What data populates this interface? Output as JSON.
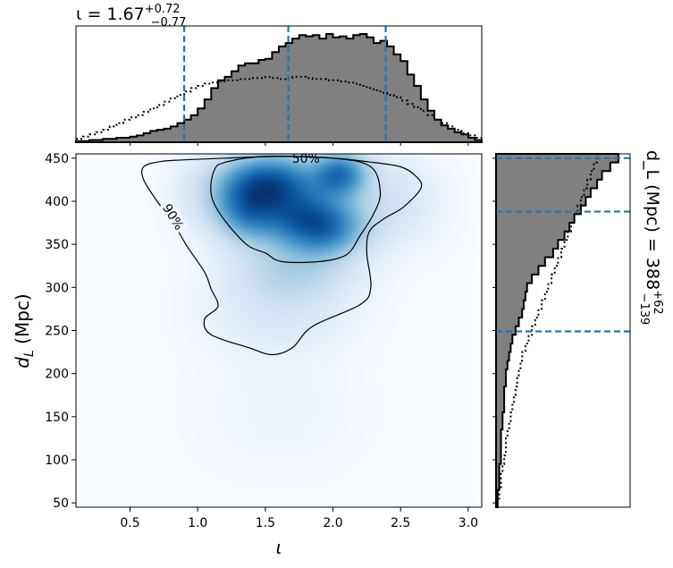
{
  "chart_data": [
    {
      "type": "heatmap",
      "panel": "joint",
      "xlabel": "ι",
      "ylabel": "d_L (Mpc)",
      "xlim": [
        0.1,
        3.1
      ],
      "ylim": [
        45,
        455
      ],
      "x_ticks": [
        0.5,
        1.0,
        1.5,
        2.0,
        2.5,
        3.0
      ],
      "x_tick_labels": [
        "0.5",
        "1.0",
        "1.5",
        "2.0",
        "2.5",
        "3.0"
      ],
      "y_ticks": [
        50,
        100,
        150,
        200,
        250,
        300,
        350,
        400,
        450
      ],
      "y_tick_labels": [
        "50",
        "100",
        "150",
        "200",
        "250",
        "300",
        "350",
        "400",
        "450"
      ],
      "colormap": "Blues",
      "density_blobs": [
        {
          "x": 1.55,
          "y": 425,
          "sx": 0.22,
          "sy": 22,
          "w": 1.0
        },
        {
          "x": 2.05,
          "y": 432,
          "sx": 0.14,
          "sy": 18,
          "w": 0.95
        },
        {
          "x": 1.7,
          "y": 385,
          "sx": 0.25,
          "sy": 25,
          "w": 0.85
        },
        {
          "x": 1.95,
          "y": 368,
          "sx": 0.2,
          "sy": 22,
          "w": 0.75
        },
        {
          "x": 1.35,
          "y": 392,
          "sx": 0.15,
          "sy": 25,
          "w": 0.6
        },
        {
          "x": 1.7,
          "y": 320,
          "sx": 0.3,
          "sy": 25,
          "w": 0.35
        },
        {
          "x": 1.6,
          "y": 270,
          "sx": 0.35,
          "sy": 30,
          "w": 0.15
        },
        {
          "x": 1.15,
          "y": 410,
          "sx": 0.2,
          "sy": 30,
          "w": 0.25
        },
        {
          "x": 2.4,
          "y": 400,
          "sx": 0.25,
          "sy": 35,
          "w": 0.2
        },
        {
          "x": 1.6,
          "y": 160,
          "sx": 0.4,
          "sy": 50,
          "w": 0.05
        }
      ],
      "contours": [
        {
          "label": "50%",
          "points": [
            [
              1.12,
              435
            ],
            [
              1.2,
              445
            ],
            [
              1.5,
              452
            ],
            [
              2.0,
              450
            ],
            [
              2.28,
              440
            ],
            [
              2.35,
              410
            ],
            [
              2.3,
              385
            ],
            [
              2.2,
              360
            ],
            [
              2.1,
              338
            ],
            [
              1.9,
              330
            ],
            [
              1.62,
              330
            ],
            [
              1.5,
              340
            ],
            [
              1.36,
              350
            ],
            [
              1.18,
              382
            ],
            [
              1.1,
              408
            ]
          ]
        },
        {
          "label": "90%",
          "points": [
            [
              0.6,
              440
            ],
            [
              0.72,
              446
            ],
            [
              0.9,
              448
            ],
            [
              1.2,
              450
            ],
            [
              1.6,
              452
            ],
            [
              2.0,
              450
            ],
            [
              2.25,
              446
            ],
            [
              2.5,
              440
            ],
            [
              2.62,
              428
            ],
            [
              2.65,
              415
            ],
            [
              2.52,
              393
            ],
            [
              2.38,
              380
            ],
            [
              2.27,
              365
            ],
            [
              2.25,
              340
            ],
            [
              2.28,
              300
            ],
            [
              2.2,
              280
            ],
            [
              1.85,
              255
            ],
            [
              1.7,
              230
            ],
            [
              1.55,
              222
            ],
            [
              1.38,
              230
            ],
            [
              1.1,
              245
            ],
            [
              1.05,
              263
            ],
            [
              1.15,
              278
            ],
            [
              1.1,
              298
            ],
            [
              1.05,
              318
            ],
            [
              0.92,
              348
            ],
            [
              0.82,
              375
            ],
            [
              0.7,
              400
            ],
            [
              0.6,
              425
            ]
          ]
        }
      ]
    },
    {
      "type": "area",
      "panel": "top-marginal",
      "title_prefix": "ι = 1.67",
      "title_sup": "+0.72",
      "title_sub": "−0.77",
      "xlim": [
        0.1,
        3.1
      ],
      "bin_edges_start": 0.1,
      "bin_width": 0.05,
      "values": [
        1,
        1,
        2,
        2,
        3,
        3,
        4,
        4,
        5,
        6,
        8,
        10,
        11,
        12,
        14,
        17,
        20,
        24,
        30,
        38,
        48,
        55,
        58,
        63,
        68,
        70,
        70,
        73,
        74,
        80,
        85,
        88,
        92,
        95,
        94,
        95,
        92,
        96,
        93,
        94,
        92,
        95,
        96,
        93,
        88,
        90,
        85,
        78,
        72,
        60,
        50,
        38,
        28,
        20,
        15,
        12,
        9,
        7,
        4,
        2
      ],
      "prior_values": [
        3,
        5,
        7,
        9,
        11,
        14,
        17,
        20,
        22,
        24,
        27,
        30,
        33,
        36,
        39,
        42,
        45,
        48,
        50,
        52,
        53,
        54,
        55,
        55,
        56,
        56,
        57,
        57,
        58,
        57,
        56,
        57,
        58,
        58,
        57,
        56,
        56,
        55,
        55,
        54,
        53,
        52,
        50,
        48,
        46,
        44,
        42,
        40,
        37,
        34,
        31,
        28,
        24,
        20,
        17,
        14,
        11,
        8,
        6,
        4
      ],
      "credible_lines": [
        0.9,
        1.67,
        2.39
      ]
    },
    {
      "type": "area",
      "panel": "right-marginal",
      "ylabel_prefix": "d_L (Mpc) = 388",
      "ylabel_sup": "+62",
      "ylabel_sub": "−139",
      "ylim": [
        45,
        455
      ],
      "bin_edges_start": 45,
      "bin_width": 10,
      "values": [
        1,
        1,
        2,
        2,
        2,
        3,
        3,
        3,
        3,
        4,
        4,
        5,
        5,
        5,
        6,
        6,
        7,
        8,
        9,
        10,
        12,
        14,
        16,
        17,
        18,
        19,
        22,
        26,
        30,
        35,
        38,
        42,
        45,
        48,
        52,
        55,
        58,
        62,
        65,
        70,
        75
      ],
      "prior_values": [
        1,
        2,
        3,
        3,
        4,
        5,
        6,
        6,
        7,
        8,
        9,
        10,
        11,
        12,
        13,
        14,
        15,
        16,
        18,
        20,
        22,
        24,
        26,
        28,
        30,
        32,
        34,
        36,
        38,
        40,
        42,
        44,
        46,
        48,
        50,
        52,
        54,
        56,
        58,
        60,
        62
      ],
      "credible_lines": [
        249,
        388,
        450
      ]
    }
  ]
}
